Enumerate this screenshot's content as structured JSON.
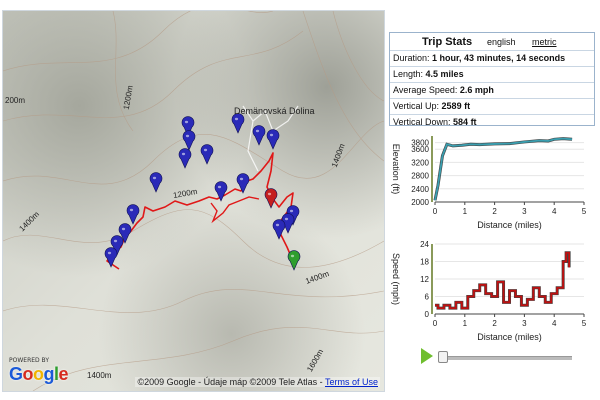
{
  "map": {
    "labels": {
      "place": "Demänovská Dolina",
      "c1200a": "1200m",
      "c1200b": "1200m",
      "c1400a": "1400m",
      "c1400b": "1400m",
      "c1600a": "1600m",
      "c1600b": "1600m",
      "c1600c": "1600m",
      "c1400c": "1400m",
      "c200": "200m",
      "c1400d": "1400m",
      "c1200c": "1200m"
    },
    "google_logo": "Google",
    "powered_by": "POWERED BY",
    "copyright": "©2009 Google - Údaje máp ©2009 Tele Atlas - ",
    "terms_link": "Terms of Use",
    "track_color": "#e01818",
    "marker_color": "#2a2ab8",
    "start_marker_color": "#2e9e2e",
    "end_marker_color": "#c41f1f",
    "marker_count": 20
  },
  "stats": {
    "title": "Trip Stats",
    "english": "english",
    "metric": "metric",
    "rows": [
      {
        "label": "Duration:",
        "value": "1 hour, 43 minutes, 14 seconds"
      },
      {
        "label": "Length:",
        "value": "4.5 miles"
      },
      {
        "label": "Average Speed:",
        "value": "2.6 mph"
      },
      {
        "label": "Vertical Up:",
        "value": "2589 ft"
      },
      {
        "label": "Vertical Down:",
        "value": "584 ft"
      }
    ]
  },
  "chart_data": [
    {
      "type": "line",
      "title": "",
      "xlabel": "Distance (miles)",
      "ylabel": "Elevation (ft)",
      "xlim": [
        0,
        5
      ],
      "ylim": [
        2000,
        4000
      ],
      "x_ticks": [
        "0",
        "1",
        "2",
        "3",
        "4",
        "5"
      ],
      "y_ticks": [
        "2000",
        "2400",
        "2800",
        "3200",
        "3600",
        "3800"
      ],
      "series": [
        {
          "values_x": [
            0,
            0.1,
            0.25,
            0.4,
            0.6,
            0.9,
            1.2,
            1.5,
            2.0,
            2.5,
            3.0,
            3.5,
            3.8,
            4.0,
            4.3,
            4.6
          ],
          "values_y": [
            2050,
            2500,
            3400,
            3750,
            3700,
            3720,
            3750,
            3740,
            3760,
            3770,
            3820,
            3860,
            3850,
            3900,
            3920,
            3900
          ]
        }
      ],
      "color": "#3a9fb0"
    },
    {
      "type": "line",
      "title": "",
      "xlabel": "Distance (miles)",
      "ylabel": "Speed (mph)",
      "xlim": [
        0,
        5
      ],
      "ylim": [
        0,
        24
      ],
      "x_ticks": [
        "0",
        "1",
        "2",
        "3",
        "4",
        "5"
      ],
      "y_ticks": [
        "0",
        "6",
        "12",
        "18",
        "24"
      ],
      "series": [
        {
          "values_x": [
            0,
            0.1,
            0.3,
            0.5,
            0.7,
            0.9,
            1.1,
            1.3,
            1.5,
            1.7,
            1.9,
            2.1,
            2.3,
            2.5,
            2.7,
            2.9,
            3.1,
            3.3,
            3.5,
            3.7,
            3.9,
            4.1,
            4.3,
            4.4,
            4.5
          ],
          "values_y": [
            3,
            2,
            3,
            2,
            4,
            2,
            6,
            8,
            10,
            7,
            6,
            11,
            4,
            8,
            6,
            3,
            5,
            9,
            6,
            4,
            7,
            9,
            18,
            21,
            16
          ]
        }
      ],
      "color": "#c01010"
    }
  ],
  "playback": {
    "progress": 0.02
  }
}
